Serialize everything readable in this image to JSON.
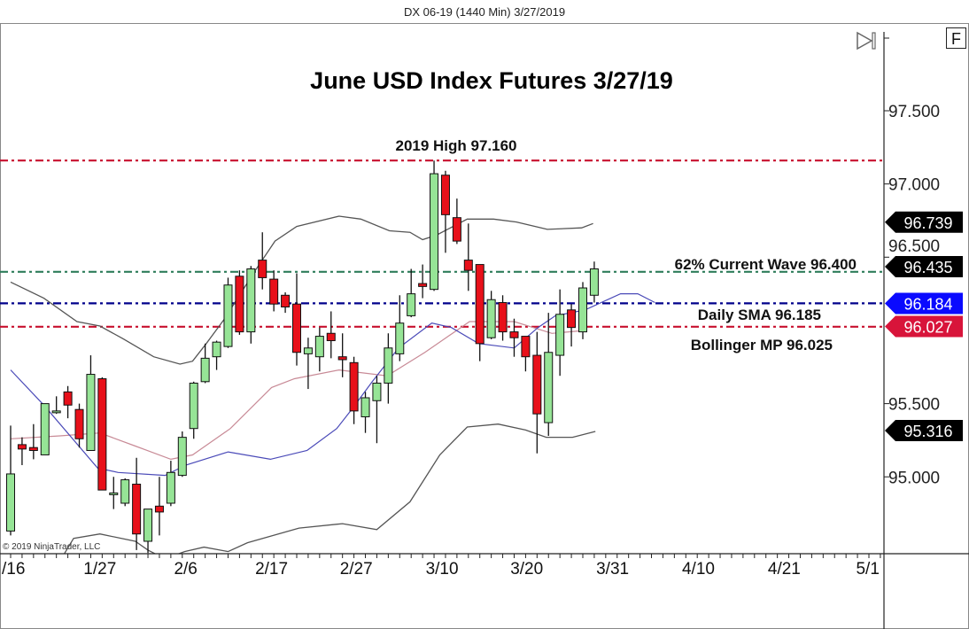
{
  "window": {
    "title": "DX 06-19 (1440 Min)  3/27/2019",
    "f_button": "F",
    "scroll_end_icon": "skip-to-end-icon"
  },
  "copyright": "© 2019 NinjaTrader, LLC",
  "chart_data": {
    "type": "candlestick",
    "title": "June USD Index Futures 3/27/19",
    "instrument": "DX 06-19",
    "ylim": [
      94.48,
      98.1
    ],
    "y_ticks": [
      95.0,
      95.5,
      96.5,
      97.0,
      97.5
    ],
    "y_tick_labels": [
      "95.000",
      "95.500",
      "96.500",
      "97.000",
      "97.500"
    ],
    "x_ticks": [
      {
        "bar": 0.2,
        "label": "/16"
      },
      {
        "bar": 7.8,
        "label": "1/27"
      },
      {
        "bar": 15.3,
        "label": "2/6"
      },
      {
        "bar": 22.8,
        "label": "2/17"
      },
      {
        "bar": 30.2,
        "label": "2/27"
      },
      {
        "bar": 37.7,
        "label": "3/10"
      },
      {
        "bar": 45.1,
        "label": "3/20"
      },
      {
        "bar": 52.6,
        "label": "3/31"
      },
      {
        "bar": 60.1,
        "label": "4/10"
      },
      {
        "bar": 67.6,
        "label": "4/21"
      },
      {
        "bar": 74.9,
        "label": "5/1"
      }
    ],
    "xlim_bars": [
      -0.9,
      76.5
    ],
    "colors": {
      "up": "#96e496",
      "down": "#e8101a",
      "sma": "#4a4ab8",
      "bollinger_mid": "#c88a96",
      "bollinger_band": "#555555"
    },
    "candles": [
      [
        94.63,
        95.35,
        94.6,
        95.02
      ],
      [
        95.22,
        95.27,
        95.08,
        95.19
      ],
      [
        95.2,
        95.36,
        95.12,
        95.18
      ],
      [
        95.15,
        95.5,
        95.15,
        95.5
      ],
      [
        95.44,
        95.55,
        95.43,
        95.45
      ],
      [
        95.58,
        95.62,
        95.4,
        95.49
      ],
      [
        95.46,
        95.5,
        95.2,
        95.26
      ],
      [
        95.18,
        95.83,
        95.18,
        95.7
      ],
      [
        95.67,
        95.68,
        94.91,
        94.91
      ],
      [
        94.89,
        95.0,
        94.78,
        94.89
      ],
      [
        94.82,
        94.99,
        94.8,
        94.98
      ],
      [
        94.95,
        95.13,
        94.5,
        94.61
      ],
      [
        94.56,
        94.78,
        94.48,
        94.78
      ],
      [
        94.8,
        95.0,
        94.6,
        94.76
      ],
      [
        94.82,
        95.11,
        94.8,
        95.03
      ],
      [
        95.01,
        95.31,
        95.0,
        95.27
      ],
      [
        95.33,
        95.65,
        95.26,
        95.64
      ],
      [
        95.65,
        95.91,
        95.64,
        95.81
      ],
      [
        95.82,
        95.93,
        95.73,
        95.92
      ],
      [
        95.89,
        96.36,
        95.88,
        96.31
      ],
      [
        96.37,
        96.41,
        95.97,
        95.99
      ],
      [
        95.99,
        96.44,
        95.91,
        96.42
      ],
      [
        96.48,
        96.67,
        96.28,
        96.36
      ],
      [
        96.35,
        96.41,
        96.13,
        96.18
      ],
      [
        96.24,
        96.26,
        96.12,
        96.16
      ],
      [
        96.18,
        96.39,
        95.76,
        95.85
      ],
      [
        95.84,
        95.95,
        95.6,
        95.88
      ],
      [
        95.82,
        96.02,
        95.72,
        95.96
      ],
      [
        95.98,
        96.13,
        95.81,
        95.93
      ],
      [
        95.82,
        95.98,
        95.68,
        95.8
      ],
      [
        95.78,
        95.82,
        95.36,
        95.45
      ],
      [
        95.41,
        95.58,
        95.3,
        95.54
      ],
      [
        95.52,
        95.69,
        95.23,
        95.64
      ],
      [
        95.64,
        95.98,
        95.5,
        95.88
      ],
      [
        95.84,
        96.24,
        95.79,
        96.05
      ],
      [
        96.1,
        96.42,
        96.09,
        96.25
      ],
      [
        96.32,
        96.45,
        96.22,
        96.3
      ],
      [
        96.28,
        97.16,
        96.27,
        97.07
      ],
      [
        97.06,
        97.09,
        96.53,
        96.79
      ],
      [
        96.77,
        96.9,
        96.59,
        96.61
      ],
      [
        96.48,
        96.73,
        96.27,
        96.41
      ],
      [
        96.45,
        96.45,
        95.79,
        95.91
      ],
      [
        95.95,
        96.27,
        95.94,
        96.21
      ],
      [
        96.19,
        96.24,
        95.93,
        95.99
      ],
      [
        95.99,
        96.08,
        95.82,
        95.95
      ],
      [
        95.96,
        95.96,
        95.72,
        95.82
      ],
      [
        95.83,
        95.99,
        95.16,
        95.43
      ],
      [
        95.37,
        96.12,
        95.28,
        95.85
      ],
      [
        95.83,
        96.28,
        95.69,
        96.11
      ],
      [
        96.14,
        96.18,
        95.89,
        96.02
      ],
      [
        95.99,
        96.33,
        95.94,
        96.29
      ],
      [
        96.24,
        96.47,
        96.19,
        96.42
      ]
    ],
    "candle_fields": [
      "open",
      "high",
      "low",
      "close"
    ],
    "indicators": {
      "bollinger_upper": [
        [
          0,
          96.33
        ],
        [
          2.9,
          96.22
        ],
        [
          5.8,
          96.06
        ],
        [
          7.8,
          96.03
        ],
        [
          9.9,
          95.94
        ],
        [
          12.5,
          95.82
        ],
        [
          14.8,
          95.77
        ],
        [
          15.9,
          95.79
        ],
        [
          17.1,
          95.91
        ],
        [
          18.7,
          96.08
        ],
        [
          21.3,
          96.4
        ],
        [
          23.1,
          96.61
        ],
        [
          25,
          96.71
        ],
        [
          28.7,
          96.78
        ],
        [
          30.6,
          96.76
        ],
        [
          33.1,
          96.68
        ],
        [
          34.9,
          96.67
        ],
        [
          36,
          96.62
        ],
        [
          37.2,
          96.65
        ],
        [
          39.9,
          96.76
        ],
        [
          42.2,
          96.76
        ],
        [
          44.2,
          96.74
        ],
        [
          46.9,
          96.69
        ],
        [
          49.9,
          96.7
        ],
        [
          50.9,
          96.73
        ]
      ],
      "bollinger_lower": [
        [
          4.5,
          94.45
        ],
        [
          5.5,
          94.58
        ],
        [
          7.8,
          94.61
        ],
        [
          10.9,
          94.56
        ],
        [
          12,
          94.5
        ],
        [
          13.5,
          94.44
        ],
        [
          15.2,
          94.49
        ],
        [
          16.9,
          94.52
        ],
        [
          19,
          94.49
        ],
        [
          20.7,
          94.55
        ],
        [
          25.2,
          94.65
        ],
        [
          29,
          94.68
        ],
        [
          32,
          94.64
        ],
        [
          34.9,
          94.83
        ],
        [
          37.5,
          95.15
        ],
        [
          39.9,
          95.34
        ],
        [
          42.6,
          95.36
        ],
        [
          45,
          95.32
        ],
        [
          46.8,
          95.27
        ],
        [
          49.1,
          95.27
        ],
        [
          51.1,
          95.31
        ]
      ],
      "bollinger_mid": [
        [
          0,
          95.26
        ],
        [
          4.3,
          95.28
        ],
        [
          7.8,
          95.3
        ],
        [
          10.9,
          95.21
        ],
        [
          14,
          95.12
        ],
        [
          15.9,
          95.15
        ],
        [
          19.2,
          95.33
        ],
        [
          22.8,
          95.61
        ],
        [
          24.8,
          95.67
        ],
        [
          28.7,
          95.73
        ],
        [
          32.9,
          95.69
        ],
        [
          36.2,
          95.85
        ],
        [
          40.1,
          96.06
        ],
        [
          44,
          96.06
        ],
        [
          47.3,
          95.98
        ],
        [
          50.2,
          96.0
        ]
      ],
      "sma": [
        [
          0,
          95.73
        ],
        [
          2.9,
          95.49
        ],
        [
          7.6,
          95.06
        ],
        [
          9.4,
          95.03
        ],
        [
          13.5,
          95.01
        ],
        [
          15.3,
          95.08
        ],
        [
          19,
          95.17
        ],
        [
          22.7,
          95.12
        ],
        [
          25.9,
          95.18
        ],
        [
          28.5,
          95.33
        ],
        [
          29.8,
          95.46
        ],
        [
          31.6,
          95.65
        ],
        [
          33.9,
          95.88
        ],
        [
          36.8,
          96.05
        ],
        [
          38.5,
          96.02
        ],
        [
          40.9,
          95.91
        ],
        [
          44,
          95.88
        ],
        [
          46.1,
          96.02
        ],
        [
          47.6,
          96.1
        ],
        [
          50.2,
          96.14
        ],
        [
          53.3,
          96.25
        ],
        [
          54.8,
          96.25
        ],
        [
          56.3,
          96.19
        ]
      ]
    },
    "horizontal_lines": [
      {
        "value": 97.16,
        "color": "#c8102e",
        "label": "2019 High 97.160"
      },
      {
        "value": 96.4,
        "color": "#2e7d5b",
        "label": "62% Current Wave 96.400"
      },
      {
        "value": 96.185,
        "color": "#00008b",
        "label": "Daily SMA 96.185"
      },
      {
        "value": 96.025,
        "color": "#c8102e",
        "label": "Bollinger MP 96.025"
      }
    ],
    "price_markers": [
      {
        "value": 96.739,
        "label": "96.739",
        "color": "#000000"
      },
      {
        "value": 96.435,
        "label": "96.435",
        "color": "#000000"
      },
      {
        "value": 96.184,
        "label": "96.184",
        "color": "#0a0aff"
      },
      {
        "value": 96.027,
        "label": "96.027",
        "color": "#d8143a"
      },
      {
        "value": 95.316,
        "label": "95.316",
        "color": "#000000"
      }
    ]
  }
}
